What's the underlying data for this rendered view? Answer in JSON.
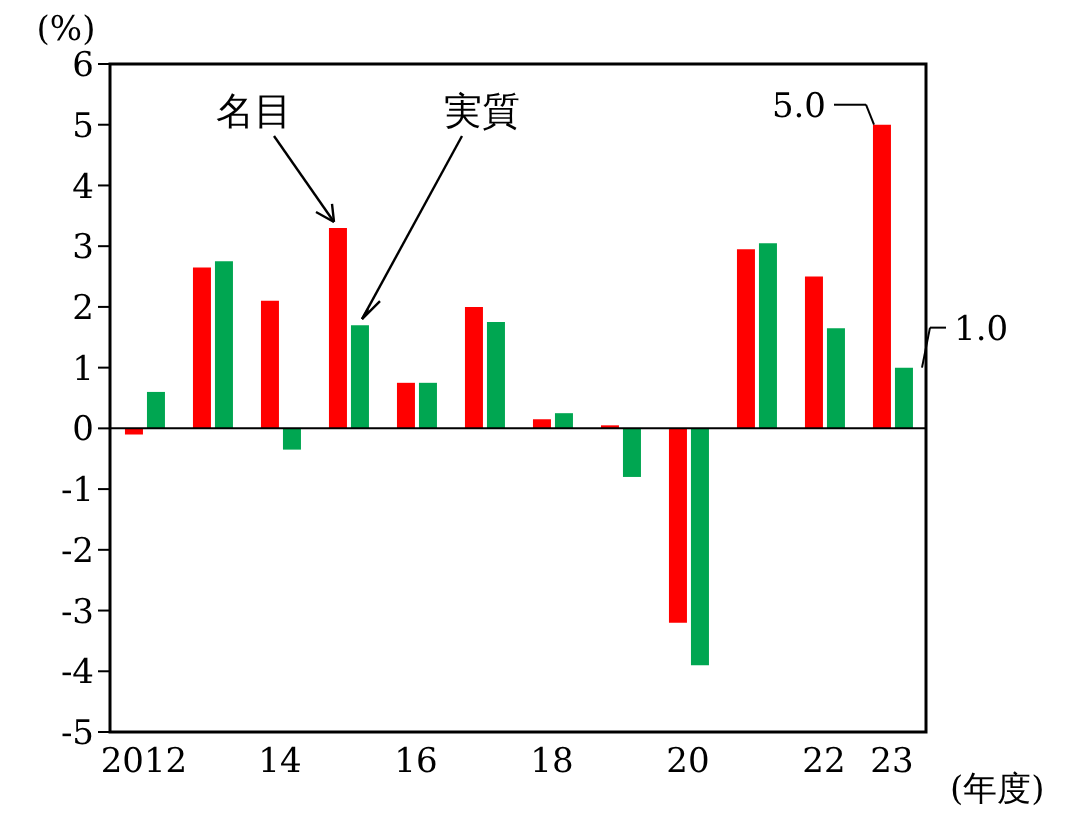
{
  "chart_data": {
    "type": "bar",
    "ylabel": "(%)",
    "xlabel": "(年度)",
    "categories": [
      "2012",
      null,
      "14",
      null,
      "16",
      null,
      "18",
      null,
      "20",
      null,
      "22",
      "23"
    ],
    "series": [
      {
        "name": "名目",
        "color": "#ff0000",
        "values": [
          -0.1,
          2.65,
          2.1,
          3.3,
          0.75,
          2.0,
          0.15,
          0.05,
          -3.2,
          2.95,
          2.5,
          5.0
        ]
      },
      {
        "name": "実質",
        "color": "#00a651",
        "values": [
          0.6,
          2.75,
          -0.35,
          1.7,
          0.75,
          1.75,
          0.25,
          -0.8,
          -3.9,
          3.05,
          1.65,
          1.0
        ]
      }
    ],
    "ylim": [
      -5,
      6
    ],
    "yticks": [
      -5,
      -4,
      -3,
      -2,
      -1,
      0,
      1,
      2,
      3,
      4,
      5,
      6
    ],
    "ref_lines": [
      {
        "axis": "y",
        "value": 0,
        "color": "#000000"
      }
    ],
    "annotations": [
      {
        "text": "5.0",
        "x": "23",
        "y": 5.0
      },
      {
        "text": "1.0",
        "x": "23",
        "y": 1.0
      }
    ],
    "grid": false,
    "legend": false
  }
}
